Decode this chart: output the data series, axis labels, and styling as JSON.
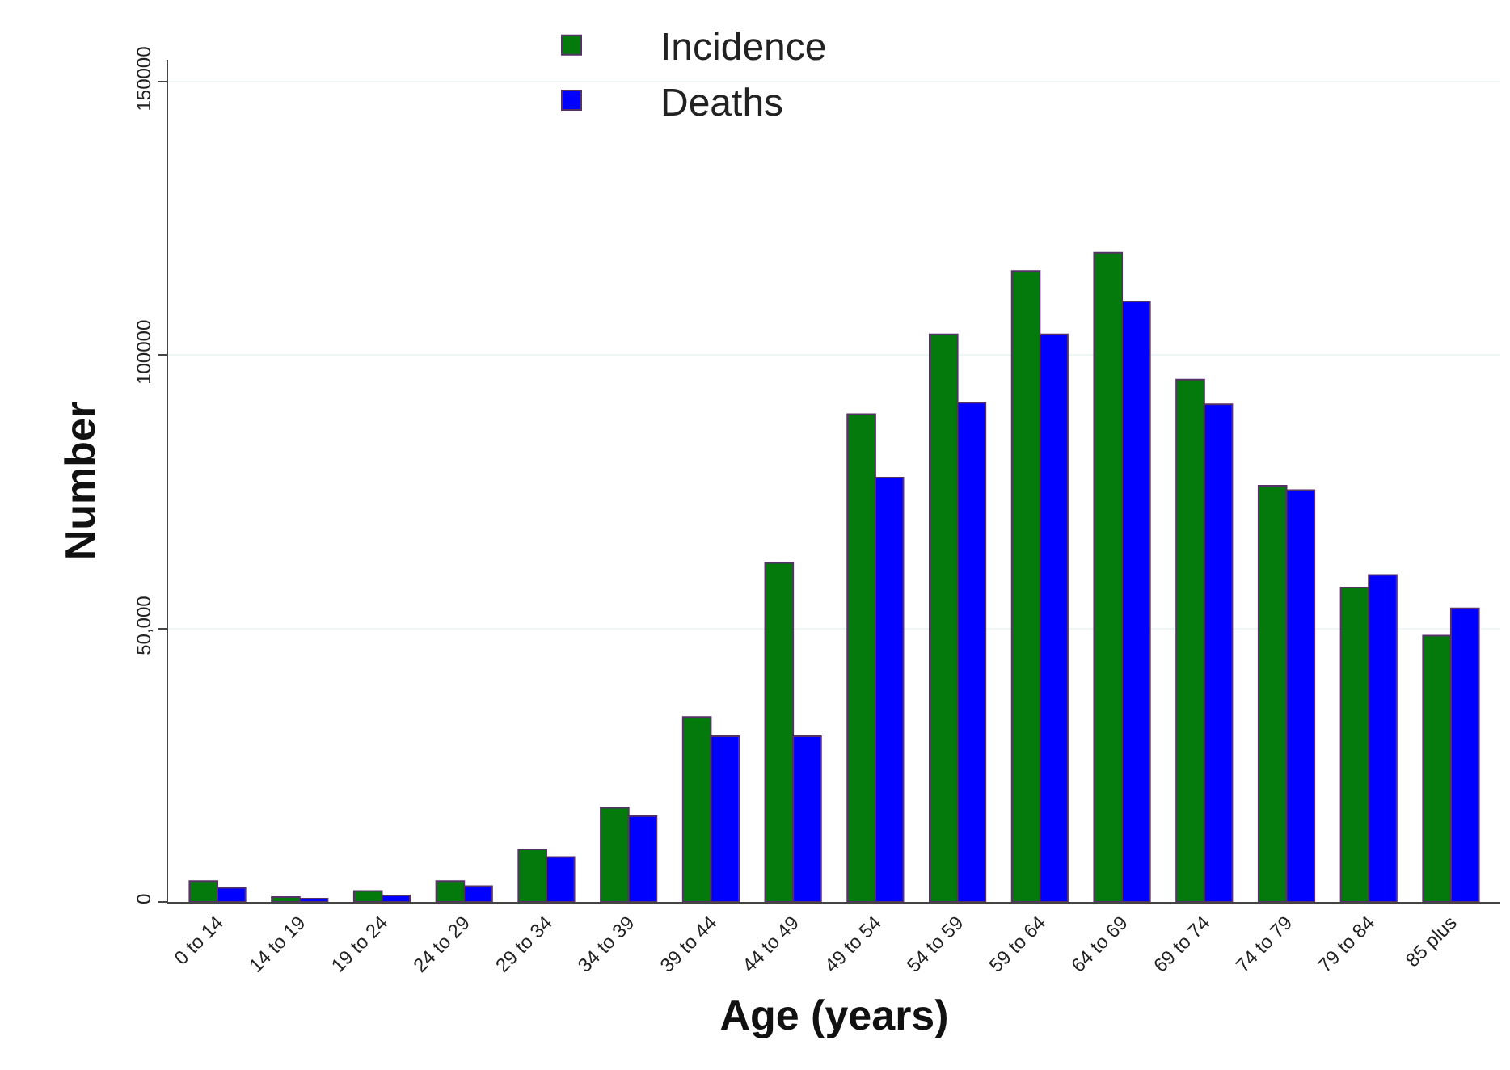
{
  "chart_data": {
    "type": "bar",
    "xlabel": "Age (years)",
    "ylabel": "Number",
    "categories": [
      "0 to 14",
      "14 to 19",
      "19 to 24",
      "24 to 29",
      "29 to 34",
      "34 to 39",
      "39 to 44",
      "44 to 49",
      "49 to 54",
      "54 to 59",
      "59 to 64",
      "64 to 69",
      "69 to 74",
      "74 to 79",
      "79 to 84",
      "85 plus"
    ],
    "series": [
      {
        "name": "Incidence",
        "color": "#047a0c",
        "values": [
          3800,
          900,
          2000,
          3800,
          9600,
          17200,
          33800,
          62000,
          89200,
          103800,
          115400,
          118700,
          95500,
          76100,
          57500,
          48700
        ]
      },
      {
        "name": "Deaths",
        "color": "#0000ff",
        "values": [
          2600,
          600,
          1200,
          2900,
          8200,
          15700,
          30300,
          30300,
          77600,
          91300,
          103800,
          109800,
          91000,
          75300,
          59800,
          53700
        ]
      }
    ],
    "ylim": [
      0,
      154000
    ],
    "yticks": [
      0,
      {
        "value": 50000,
        "label": "50,000"
      },
      100000,
      150000
    ],
    "grid": "y",
    "legend": "top"
  }
}
